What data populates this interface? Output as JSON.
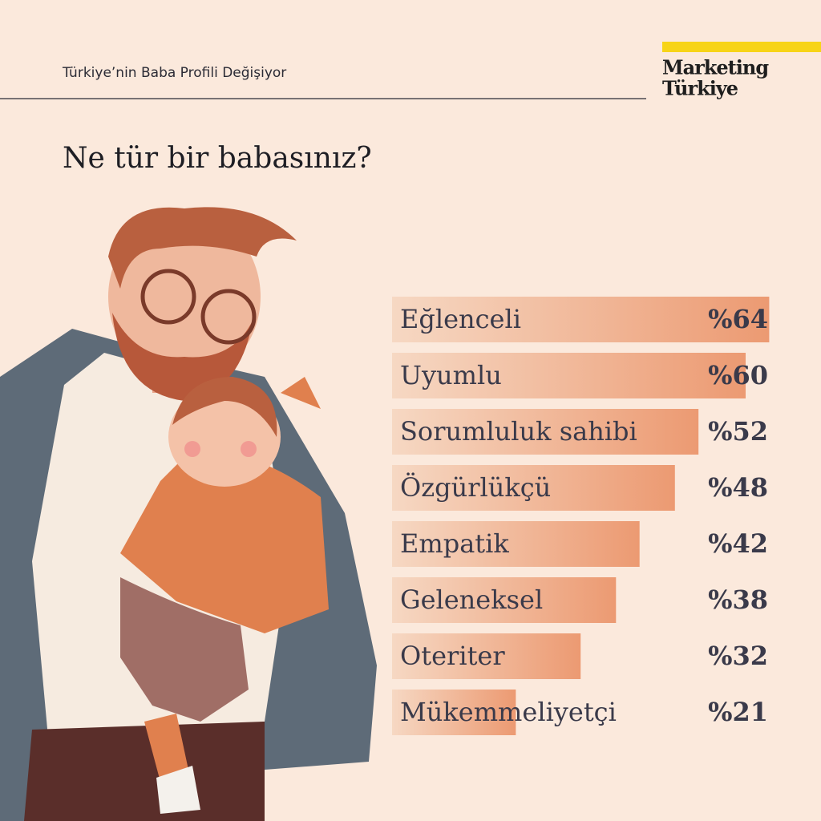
{
  "header": {
    "subtitle": "Türkiye’nin Baba Profili Değişiyor",
    "logo": [
      "Marketing",
      "Türkiye"
    ]
  },
  "chart_data": {
    "type": "bar",
    "orientation": "horizontal",
    "title": "Ne tür bir babasınız?",
    "categories": [
      "Eğlenceli",
      "Uyumlu",
      "Sorumluluk sahibi",
      "Özgürlükçü",
      "Empatik",
      "Geleneksel",
      "Oteriter",
      "Mükemmeliyetçi"
    ],
    "values": [
      64,
      60,
      52,
      48,
      42,
      38,
      32,
      21
    ],
    "value_labels": [
      "%64",
      "%60",
      "%52",
      "%48",
      "%42",
      "%38",
      "%32",
      "%21"
    ],
    "color": "#ec9a72"
  }
}
